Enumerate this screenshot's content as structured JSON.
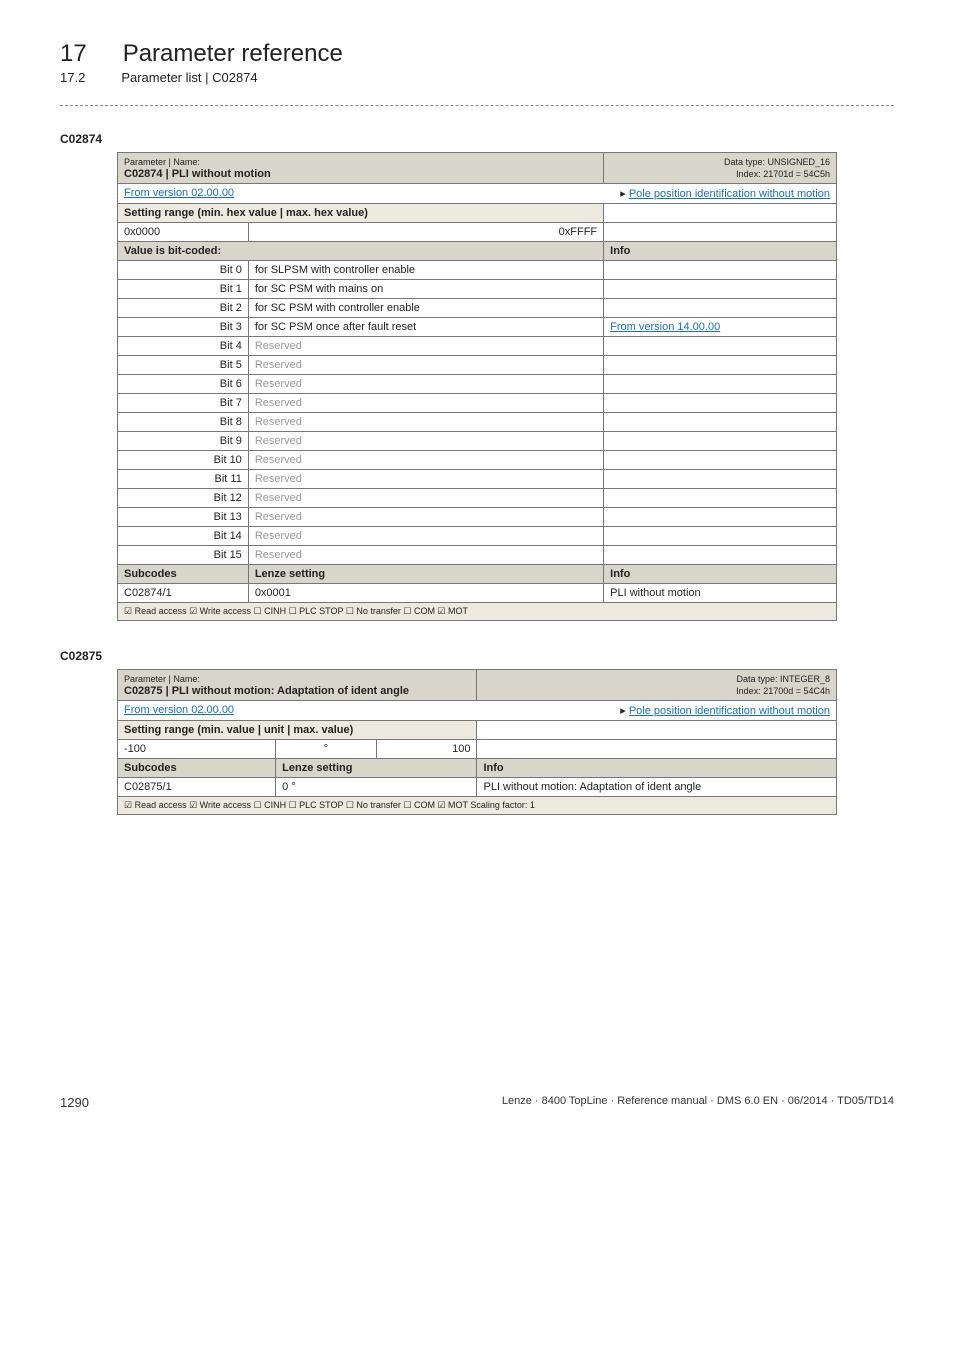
{
  "header": {
    "chapter_num": "17",
    "chapter_title": "Parameter reference",
    "section_num": "17.2",
    "section_title": "Parameter list | C02874"
  },
  "anchor1": "C02874",
  "table1": {
    "title_label": "Parameter | Name:",
    "title_name": "C02874 | PLI without motion",
    "datatype": "Data type: UNSIGNED_16",
    "index": "Index: 21701d = 54C5h",
    "from_version": "From version 02.00.00",
    "link": "Pole position identification without motion",
    "setting_range_hdr": "Setting range (min. hex value | max. hex value)",
    "min_hex": "0x0000",
    "max_hex": "0xFFFF",
    "bitcoded_hdr": "Value is bit-coded:",
    "info_hdr": "Info",
    "bits": [
      {
        "bit": "Bit 0",
        "label": "for SLPSM with controller enable",
        "info": ""
      },
      {
        "bit": "Bit 1",
        "label": "for SC PSM with mains on",
        "info": ""
      },
      {
        "bit": "Bit 2",
        "label": "for SC PSM with controller enable",
        "info": ""
      },
      {
        "bit": "Bit 3",
        "label": "for SC PSM once after fault reset",
        "info": "From version 14.00.00"
      },
      {
        "bit": "Bit 4",
        "label": "Reserved",
        "info": ""
      },
      {
        "bit": "Bit 5",
        "label": "Reserved",
        "info": ""
      },
      {
        "bit": "Bit 6",
        "label": "Reserved",
        "info": ""
      },
      {
        "bit": "Bit 7",
        "label": "Reserved",
        "info": ""
      },
      {
        "bit": "Bit 8",
        "label": "Reserved",
        "info": ""
      },
      {
        "bit": "Bit 9",
        "label": "Reserved",
        "info": ""
      },
      {
        "bit": "Bit 10",
        "label": "Reserved",
        "info": ""
      },
      {
        "bit": "Bit 11",
        "label": "Reserved",
        "info": ""
      },
      {
        "bit": "Bit 12",
        "label": "Reserved",
        "info": ""
      },
      {
        "bit": "Bit 13",
        "label": "Reserved",
        "info": ""
      },
      {
        "bit": "Bit 14",
        "label": "Reserved",
        "info": ""
      },
      {
        "bit": "Bit 15",
        "label": "Reserved",
        "info": ""
      }
    ],
    "subcodes_hdr": "Subcodes",
    "lenze_hdr": "Lenze setting",
    "subcode_id": "C02874/1",
    "subcode_val": "0x0001",
    "subcode_info": "PLI without motion",
    "access": "☑ Read access   ☑ Write access   ☐ CINH   ☐ PLC STOP   ☐ No transfer   ☐ COM   ☑ MOT"
  },
  "anchor2": "C02875",
  "table2": {
    "title_label": "Parameter | Name:",
    "title_name": "C02875 | PLI without motion: Adaptation of ident angle",
    "datatype": "Data type: INTEGER_8",
    "index": "Index: 21700d = 54C4h",
    "from_version": "From version 02.00.00",
    "link": "Pole position identification without motion",
    "setting_range_hdr": "Setting range (min. value | unit | max. value)",
    "min": "-100",
    "unit": "°",
    "max": "100",
    "subcodes_hdr": "Subcodes",
    "lenze_hdr": "Lenze setting",
    "info_hdr": "Info",
    "subcode_id": "C02875/1",
    "subcode_val": "0 °",
    "subcode_info": "PLI without motion: Adaptation of ident angle",
    "access": "☑ Read access   ☑ Write access   ☐ CINH   ☐ PLC STOP   ☐ No transfer   ☐ COM   ☑ MOT   Scaling factor: 1"
  },
  "footer": {
    "page_num": "1290",
    "doc_ref": "Lenze · 8400 TopLine · Reference manual · DMS 6.0 EN · 06/2014 · TD05/TD14"
  }
}
